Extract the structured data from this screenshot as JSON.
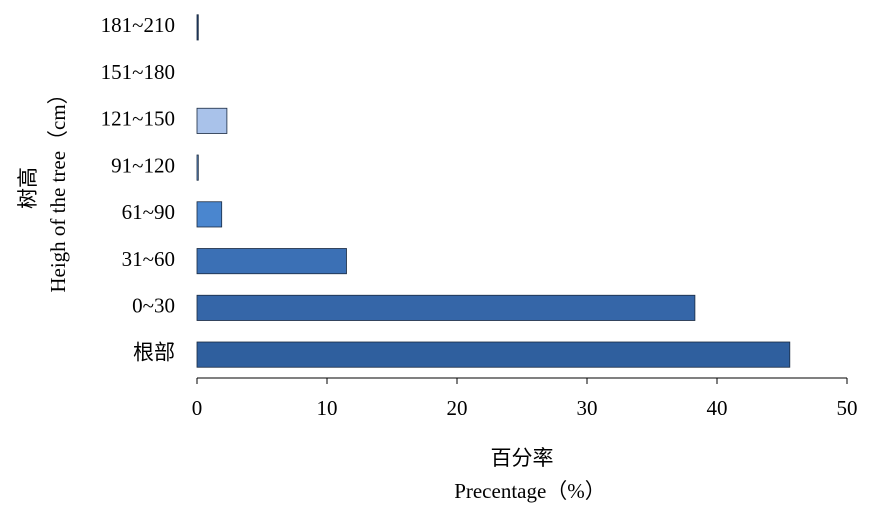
{
  "chart_data": {
    "type": "hbar",
    "y_label": "Heigh of the tree（cm）",
    "y_label_cn": "树高",
    "x_label_cn": "百分率",
    "x_label": "Precentage（%）",
    "categories": [
      "根部",
      "0~30",
      "31~60",
      "61~90",
      "91~120",
      "121~150",
      "151~180",
      "181~210"
    ],
    "values": [
      45.6,
      38.3,
      11.5,
      1.9,
      0.1,
      2.3,
      0,
      0.1
    ],
    "colors": [
      "#2f5f9e",
      "#3566a8",
      "#3b70b5",
      "#4a86cf",
      "#6a9ad8",
      "#a9c2ea",
      "#c0d2f0",
      "#1f3f6e"
    ],
    "xlim": [
      0,
      50
    ],
    "xticks": [
      0,
      10,
      20,
      30,
      40,
      50
    ]
  }
}
